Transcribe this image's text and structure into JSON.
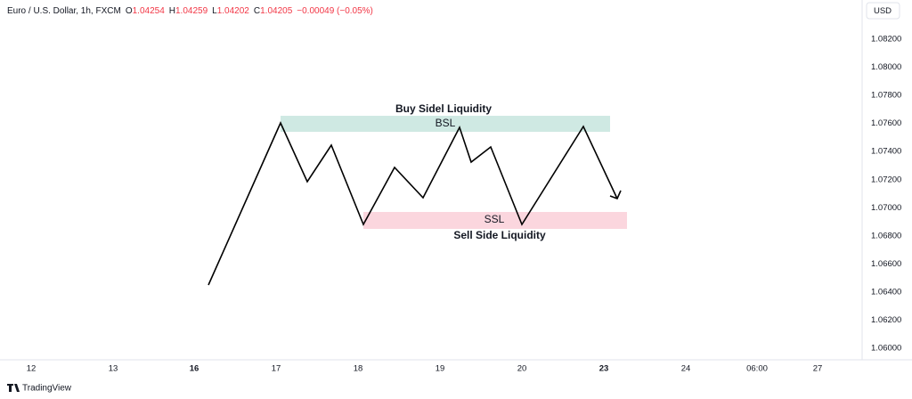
{
  "header": {
    "symbol": "Euro / U.S. Dollar, 1h, FXCM",
    "ohlc": [
      {
        "key": "O",
        "value": "1.04254"
      },
      {
        "key": "H",
        "value": "1.04259"
      },
      {
        "key": "L",
        "value": "1.04202"
      },
      {
        "key": "C",
        "value": "1.04205"
      }
    ],
    "change": "−0.00049 (−0.05%)",
    "currency": "USD"
  },
  "price_axis": [
    "1.08200",
    "1.08000",
    "1.07800",
    "1.07600",
    "1.07400",
    "1.07200",
    "1.07000",
    "1.06800",
    "1.06600",
    "1.06400",
    "1.06200",
    "1.06000"
  ],
  "time_axis": [
    {
      "label": "12",
      "bold": false
    },
    {
      "label": "13",
      "bold": false
    },
    {
      "label": "16",
      "bold": true
    },
    {
      "label": "17",
      "bold": false
    },
    {
      "label": "18",
      "bold": false
    },
    {
      "label": "19",
      "bold": false
    },
    {
      "label": "20",
      "bold": false
    },
    {
      "label": "23",
      "bold": true
    },
    {
      "label": "24",
      "bold": false
    },
    {
      "label": "06:00",
      "bold": false
    },
    {
      "label": "27",
      "bold": false
    }
  ],
  "annotations": {
    "bsl_title": "Buy Sidel Liquidity",
    "bsl": "BSL",
    "ssl": "SSL",
    "ssl_title": "Sell Side Liquidity"
  },
  "footer": {
    "brand": "TradingView"
  }
}
